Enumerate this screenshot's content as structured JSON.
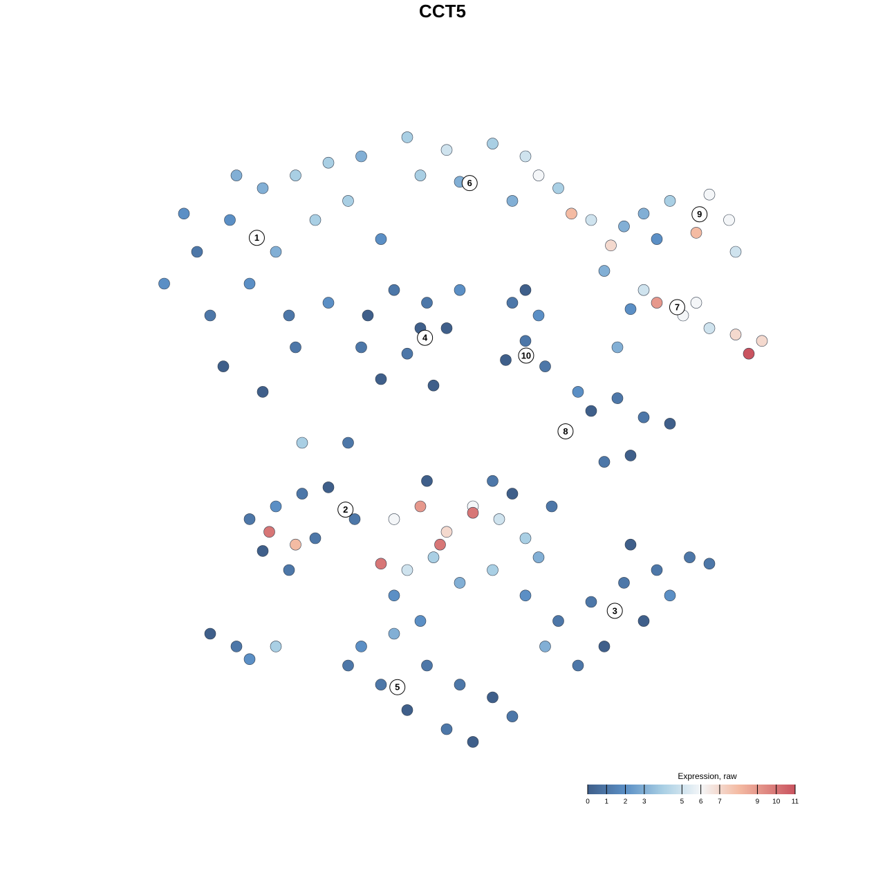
{
  "chart_data": {
    "type": "scatter",
    "title": "CCT5",
    "xlim": [
      0,
      100
    ],
    "ylim": [
      0,
      100
    ],
    "points": {
      "x": [
        5,
        10,
        15,
        20,
        25,
        30,
        35,
        12,
        18,
        22,
        28,
        33,
        14,
        20,
        25,
        30,
        8,
        16,
        38,
        24,
        42,
        48,
        55,
        60,
        65,
        50,
        44,
        58,
        70,
        67,
        73,
        62,
        78,
        82,
        88,
        91,
        86,
        80,
        92,
        75,
        72,
        78,
        80,
        84,
        88,
        92,
        96,
        94,
        86,
        76,
        74,
        36,
        40,
        45,
        48,
        42,
        38,
        46,
        35,
        44,
        50,
        58,
        62,
        60,
        57,
        63,
        60,
        66,
        70,
        74,
        78,
        82,
        76,
        72,
        68,
        18,
        22,
        26,
        30,
        34,
        20,
        24,
        28,
        21,
        25,
        40,
        44,
        48,
        52,
        56,
        60,
        46,
        42,
        50,
        55,
        62,
        38,
        47,
        52,
        58,
        64,
        45,
        55,
        40,
        60,
        65,
        70,
        75,
        80,
        85,
        78,
        72,
        68,
        82,
        63,
        88,
        76,
        35,
        40,
        45,
        50,
        55,
        42,
        48,
        38,
        52,
        58,
        44,
        33,
        12,
        16,
        18,
        22,
        26,
        33
      ],
      "y": [
        75,
        80,
        85,
        90,
        92,
        94,
        95,
        70,
        75,
        80,
        85,
        88,
        62,
        58,
        65,
        72,
        86,
        92,
        82,
        70,
        98,
        96,
        97,
        95,
        90,
        91,
        92,
        88,
        85,
        86,
        81,
        92,
        86,
        88,
        89,
        85,
        83,
        82,
        80,
        84,
        77,
        74,
        72,
        70,
        68,
        67,
        66,
        64,
        72,
        71,
        65,
        70,
        74,
        72,
        68,
        64,
        60,
        59,
        65,
        68,
        74,
        72,
        70,
        66,
        63,
        62,
        74,
        52,
        55,
        57,
        54,
        53,
        48,
        47,
        58,
        38,
        40,
        42,
        43,
        38,
        33,
        30,
        35,
        36,
        34,
        38,
        40,
        36,
        40,
        38,
        35,
        32,
        30,
        28,
        30,
        32,
        31,
        34,
        39,
        42,
        40,
        44,
        44,
        26,
        26,
        22,
        25,
        28,
        30,
        32,
        22,
        18,
        15,
        26,
        18,
        31,
        34,
        18,
        20,
        15,
        12,
        10,
        8,
        5,
        12,
        3,
        7,
        22,
        15,
        20,
        18,
        16,
        18,
        50,
        50
      ],
      "values": [
        2,
        1,
        2,
        3,
        4,
        4,
        3,
        1,
        2,
        3,
        4,
        4,
        0,
        0,
        1,
        2,
        2,
        3,
        2,
        1,
        4,
        5,
        4,
        5,
        4,
        3,
        4,
        3,
        5,
        8,
        7,
        6,
        3,
        4,
        6,
        6,
        8,
        2,
        5,
        3,
        3,
        5,
        9,
        6,
        5,
        7,
        7,
        11,
        6,
        2,
        3,
        0,
        1,
        1,
        0,
        1,
        0,
        0,
        1,
        0,
        2,
        1,
        2,
        1,
        0,
        1,
        0,
        1,
        0,
        1,
        1,
        0,
        0,
        1,
        2,
        1,
        2,
        1,
        0,
        1,
        0,
        1,
        1,
        10,
        8,
        6,
        9,
        7,
        6,
        5,
        4,
        4,
        5,
        3,
        4,
        3,
        10,
        10,
        10,
        0,
        1,
        0,
        1,
        2,
        2,
        1,
        1,
        1,
        1,
        1,
        0,
        0,
        1,
        2,
        3,
        1,
        0,
        2,
        3,
        1,
        1,
        0,
        0,
        1,
        1,
        0,
        1,
        2,
        1,
        0,
        1,
        2,
        4,
        4,
        1
      ]
    },
    "clusters": [
      {
        "label": "1",
        "x": 19.1,
        "y": 82.2
      },
      {
        "label": "2",
        "x": 32.6,
        "y": 39.5
      },
      {
        "label": "3",
        "x": 73.6,
        "y": 23.6
      },
      {
        "label": "4",
        "x": 44.7,
        "y": 66.5
      },
      {
        "label": "5",
        "x": 40.5,
        "y": 11.6
      },
      {
        "label": "6",
        "x": 51.5,
        "y": 90.8
      },
      {
        "label": "7",
        "x": 83.1,
        "y": 71.3
      },
      {
        "label": "8",
        "x": 66.1,
        "y": 51.8
      },
      {
        "label": "9",
        "x": 86.5,
        "y": 85.9
      },
      {
        "label": "10",
        "x": 60.1,
        "y": 63.7
      }
    ],
    "colorbar": {
      "title": "Expression, raw",
      "lim": [
        0,
        11
      ],
      "ticks": [
        0,
        1,
        2,
        3,
        5,
        6,
        7,
        9,
        10,
        11
      ],
      "colorscale": [
        [
          0,
          "#3f5f8a"
        ],
        [
          2,
          "#5b8fc5"
        ],
        [
          4,
          "#a9cfe4"
        ],
        [
          6,
          "#f4f6f8"
        ],
        [
          8,
          "#f4bba3"
        ],
        [
          11,
          "#c9535f"
        ]
      ]
    }
  }
}
